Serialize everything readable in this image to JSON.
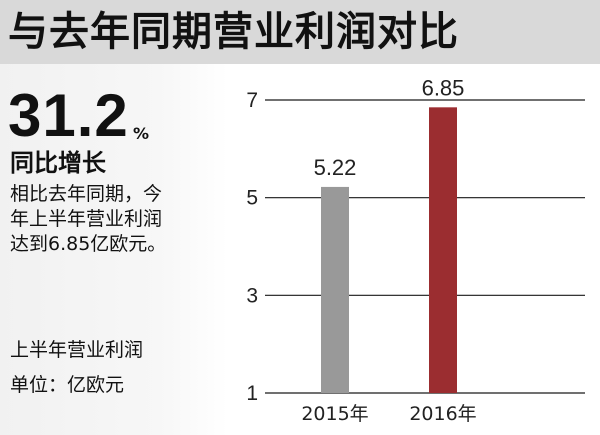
{
  "title": "与去年同期营业利润对比",
  "highlight": {
    "number": "31.2",
    "unit_symbol": "%",
    "label": "同比增长"
  },
  "description": [
    "相比去年同期，今",
    "年上半年营业利润",
    "达到6.85亿欧元。"
  ],
  "note": "上半年营业利润",
  "unit_text": "单位：亿欧元",
  "colors": {
    "title_bg": "#d9d9d9",
    "bar_2015": "#999999",
    "bar_2016": "#9b2d30",
    "gridline": "#1a1a1a"
  },
  "chart_data": {
    "type": "bar",
    "categories": [
      "2015年",
      "2016年"
    ],
    "values": [
      5.22,
      6.85
    ],
    "value_labels": [
      "5.22",
      "6.85"
    ],
    "yticks": [
      1,
      3,
      5,
      7
    ],
    "ylim": [
      1,
      7
    ],
    "grid": true,
    "xlabel": "",
    "ylabel": ""
  }
}
